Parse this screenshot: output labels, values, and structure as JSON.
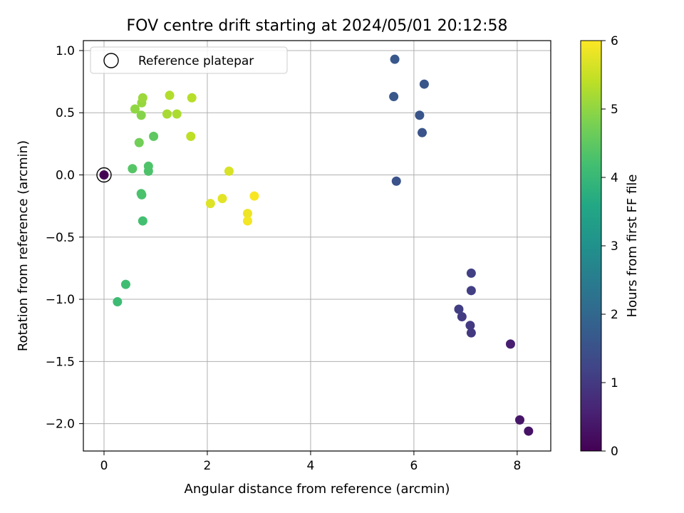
{
  "chart_data": {
    "type": "scatter",
    "title": "FOV centre drift starting at 2024/05/01 20:12:58",
    "xlabel": "Angular distance from reference (arcmin)",
    "ylabel": "Rotation from reference (arcmin)",
    "colorbar_label": "Hours from first FF file",
    "xlim": [
      -0.4,
      8.65
    ],
    "ylim": [
      -2.22,
      1.08
    ],
    "xticks": [
      0,
      2,
      4,
      6,
      8
    ],
    "xtick_labels": [
      "0",
      "2",
      "4",
      "6",
      "8"
    ],
    "yticks": [
      1.0,
      0.5,
      0.0,
      -0.5,
      -1.0,
      -1.5,
      -2.0
    ],
    "ytick_labels": [
      "1.0",
      "0.5",
      "0.0",
      "−0.5",
      "−1.0",
      "−1.5",
      "−2.0"
    ],
    "colorbar_range": [
      0,
      6
    ],
    "colorbar_ticks": [
      0,
      1,
      2,
      3,
      4,
      5,
      6
    ],
    "colorbar_tick_labels": [
      "0",
      "1",
      "2",
      "3",
      "4",
      "5",
      "6"
    ],
    "colormap": "viridis",
    "grid": true,
    "legend": {
      "position": "top-left",
      "label": "Reference platepar"
    },
    "reference_point": {
      "x": 0,
      "y": 0
    },
    "points": [
      {
        "x": 0.0,
        "y": 0.0,
        "hours": 0.0
      },
      {
        "x": 8.22,
        "y": -2.06,
        "hours": 0.3
      },
      {
        "x": 8.05,
        "y": -1.97,
        "hours": 0.35
      },
      {
        "x": 7.87,
        "y": -1.36,
        "hours": 0.5
      },
      {
        "x": 7.11,
        "y": -1.27,
        "hours": 1.0
      },
      {
        "x": 7.09,
        "y": -1.21,
        "hours": 1.02
      },
      {
        "x": 6.93,
        "y": -1.14,
        "hours": 1.05
      },
      {
        "x": 6.87,
        "y": -1.08,
        "hours": 1.08
      },
      {
        "x": 7.11,
        "y": -0.93,
        "hours": 1.1
      },
      {
        "x": 7.11,
        "y": -0.79,
        "hours": 1.12
      },
      {
        "x": 5.66,
        "y": -0.05,
        "hours": 1.5
      },
      {
        "x": 6.16,
        "y": 0.34,
        "hours": 1.55
      },
      {
        "x": 6.11,
        "y": 0.48,
        "hours": 1.58
      },
      {
        "x": 6.2,
        "y": 0.73,
        "hours": 1.6
      },
      {
        "x": 5.61,
        "y": 0.63,
        "hours": 1.62
      },
      {
        "x": 5.63,
        "y": 0.93,
        "hours": 1.65
      },
      {
        "x": 0.26,
        "y": -1.02,
        "hours": 4.1
      },
      {
        "x": 0.42,
        "y": -0.88,
        "hours": 4.15
      },
      {
        "x": 0.75,
        "y": -0.37,
        "hours": 4.2
      },
      {
        "x": 0.73,
        "y": -0.16,
        "hours": 4.25
      },
      {
        "x": 0.72,
        "y": -0.15,
        "hours": 4.28
      },
      {
        "x": 0.86,
        "y": 0.03,
        "hours": 4.3
      },
      {
        "x": 0.86,
        "y": 0.07,
        "hours": 4.32
      },
      {
        "x": 0.55,
        "y": 0.05,
        "hours": 4.4
      },
      {
        "x": 0.96,
        "y": 0.31,
        "hours": 4.5
      },
      {
        "x": 0.68,
        "y": 0.26,
        "hours": 4.7
      },
      {
        "x": 0.72,
        "y": 0.48,
        "hours": 4.9
      },
      {
        "x": 0.6,
        "y": 0.53,
        "hours": 5.0
      },
      {
        "x": 0.73,
        "y": 0.58,
        "hours": 5.05
      },
      {
        "x": 0.75,
        "y": 0.62,
        "hours": 5.1
      },
      {
        "x": 1.22,
        "y": 0.49,
        "hours": 5.2
      },
      {
        "x": 1.41,
        "y": 0.49,
        "hours": 5.25
      },
      {
        "x": 1.27,
        "y": 0.64,
        "hours": 5.3
      },
      {
        "x": 1.7,
        "y": 0.62,
        "hours": 5.35
      },
      {
        "x": 1.68,
        "y": 0.31,
        "hours": 5.4
      },
      {
        "x": 2.42,
        "y": 0.03,
        "hours": 5.65
      },
      {
        "x": 2.06,
        "y": -0.23,
        "hours": 5.7
      },
      {
        "x": 2.29,
        "y": -0.19,
        "hours": 5.75
      },
      {
        "x": 2.78,
        "y": -0.31,
        "hours": 5.85
      },
      {
        "x": 2.78,
        "y": -0.37,
        "hours": 5.9
      },
      {
        "x": 2.91,
        "y": -0.17,
        "hours": 5.95
      }
    ]
  }
}
